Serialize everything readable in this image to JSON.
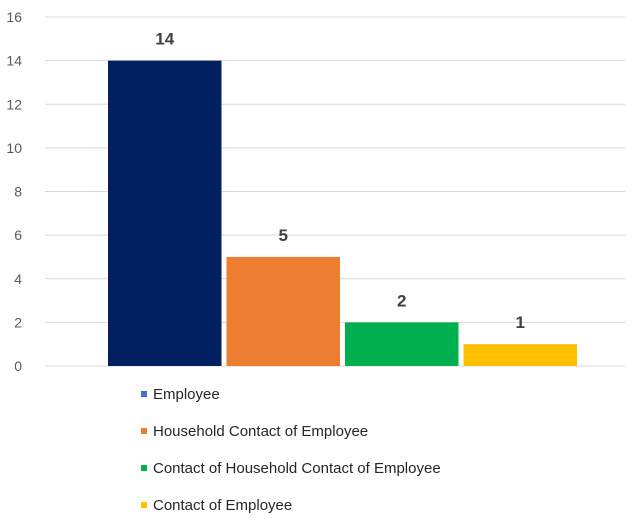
{
  "chart_data": {
    "type": "bar",
    "categories": [
      "Employee",
      "Household Contact of Employee",
      "Contact of Household Contact of Employee",
      "Contact of Employee"
    ],
    "values": [
      14,
      5,
      2,
      1
    ],
    "bar_colors": [
      "#002060",
      "#ED7D31",
      "#00B050",
      "#FFC000"
    ],
    "legend_colors": [
      "#4472C4",
      "#ED7D31",
      "#00B050",
      "#FFC000"
    ],
    "ylim": [
      0,
      16
    ],
    "yticks": [
      0,
      2,
      4,
      6,
      8,
      10,
      12,
      14,
      16
    ],
    "grid": true,
    "legend_position": "bottom",
    "title": "",
    "xlabel": "",
    "ylabel": ""
  }
}
